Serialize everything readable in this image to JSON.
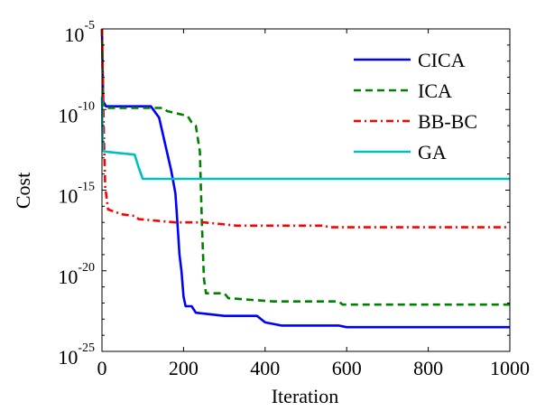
{
  "chart_data": {
    "type": "line",
    "title": "",
    "xlabel": "Iteration",
    "ylabel": "Cost",
    "xlim": [
      0,
      1000
    ],
    "ylim_log10": [
      -25,
      -5
    ],
    "y_scale": "log",
    "grid": false,
    "legend_position": "top-right",
    "x_ticks": [
      0,
      200,
      400,
      600,
      800,
      1000
    ],
    "y_ticks": [
      {
        "base": "10",
        "exp": "-5",
        "value": -5
      },
      {
        "base": "10",
        "exp": "-10",
        "value": -10
      },
      {
        "base": "10",
        "exp": "-15",
        "value": -15
      },
      {
        "base": "10",
        "exp": "-20",
        "value": -20
      },
      {
        "base": "10",
        "exp": "-25",
        "value": -25
      }
    ],
    "series": [
      {
        "name": "CICA",
        "color": "#0000ff",
        "dash": "solid",
        "points": [
          [
            0,
            -5
          ],
          [
            3,
            -9.5
          ],
          [
            10,
            -9.8
          ],
          [
            120,
            -9.8
          ],
          [
            140,
            -10.5
          ],
          [
            150,
            -11.6
          ],
          [
            160,
            -12.7
          ],
          [
            170,
            -13.8
          ],
          [
            180,
            -15.2
          ],
          [
            185,
            -17
          ],
          [
            190,
            -19
          ],
          [
            195,
            -20
          ],
          [
            200,
            -21.6
          ],
          [
            205,
            -22.2
          ],
          [
            220,
            -22.2
          ],
          [
            230,
            -22.6
          ],
          [
            300,
            -22.8
          ],
          [
            380,
            -22.8
          ],
          [
            400,
            -23.2
          ],
          [
            440,
            -23.4
          ],
          [
            580,
            -23.4
          ],
          [
            600,
            -23.5
          ],
          [
            1000,
            -23.5
          ]
        ]
      },
      {
        "name": "ICA",
        "color": "#008000",
        "dash": "8,5",
        "points": [
          [
            0,
            -5
          ],
          [
            3,
            -9.7
          ],
          [
            8,
            -9.9
          ],
          [
            150,
            -9.9
          ],
          [
            160,
            -10.1
          ],
          [
            210,
            -10.4
          ],
          [
            220,
            -10.8
          ],
          [
            230,
            -11
          ],
          [
            240,
            -12.6
          ],
          [
            245,
            -17
          ],
          [
            250,
            -20.5
          ],
          [
            255,
            -21.4
          ],
          [
            300,
            -21.4
          ],
          [
            310,
            -21.7
          ],
          [
            420,
            -21.9
          ],
          [
            580,
            -21.9
          ],
          [
            590,
            -22.1
          ],
          [
            1000,
            -22.1
          ]
        ]
      },
      {
        "name": "BB-BC",
        "color": "#ff0000",
        "dash": "8,4,2,4",
        "points": [
          [
            0,
            -5
          ],
          [
            2,
            -8
          ],
          [
            5,
            -12
          ],
          [
            8,
            -14.8
          ],
          [
            15,
            -16.2
          ],
          [
            50,
            -16.5
          ],
          [
            80,
            -16.6
          ],
          [
            90,
            -16.8
          ],
          [
            180,
            -17
          ],
          [
            250,
            -17
          ],
          [
            330,
            -17.2
          ],
          [
            540,
            -17.2
          ],
          [
            560,
            -17.3
          ],
          [
            1000,
            -17.3
          ]
        ]
      },
      {
        "name": "GA",
        "color": "#00bfbf",
        "dash": "solid",
        "points": [
          [
            0,
            -9.2
          ],
          [
            2,
            -12.5
          ],
          [
            5,
            -12.6
          ],
          [
            80,
            -12.8
          ],
          [
            90,
            -13.6
          ],
          [
            100,
            -14.3
          ],
          [
            110,
            -14.3
          ],
          [
            1000,
            -14.3
          ]
        ]
      }
    ]
  }
}
